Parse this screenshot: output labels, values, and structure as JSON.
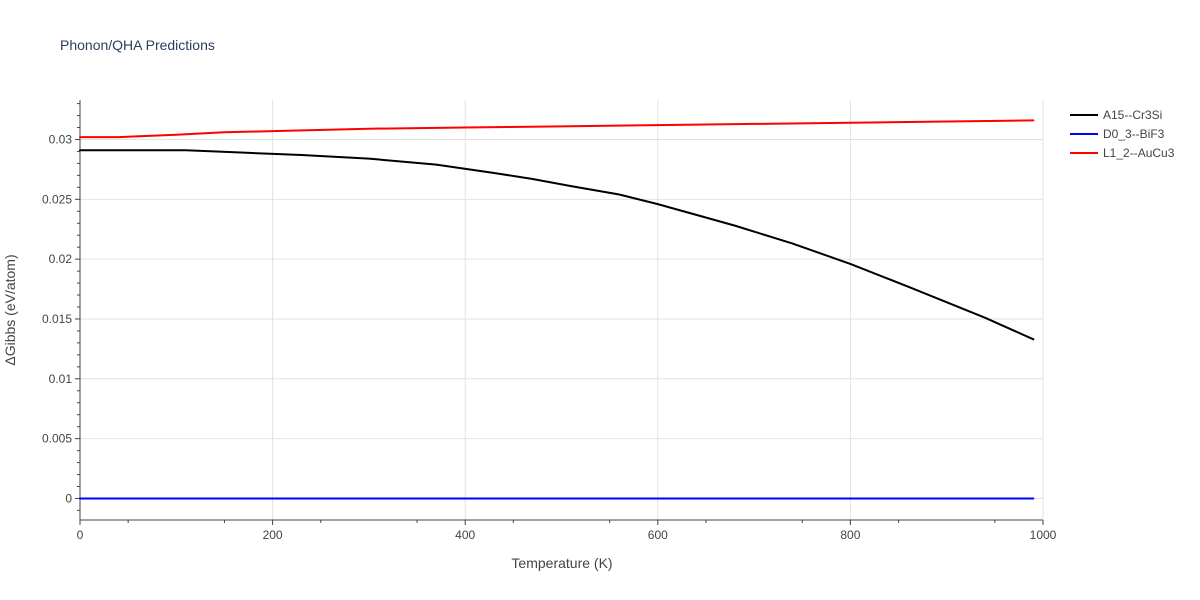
{
  "chart_data": {
    "type": "line",
    "title": "Phonon/QHA Predictions",
    "xlabel": "Temperature (K)",
    "ylabel": "ΔGibbs (eV/atom)",
    "xlim": [
      0,
      1000
    ],
    "ylim": [
      -0.0018,
      0.0333
    ],
    "grid": true,
    "legend_position": "top-right, outside plot",
    "x_ticks": [
      0,
      200,
      400,
      600,
      800,
      1000
    ],
    "x_tick_labels": [
      "0",
      "200",
      "400",
      "600",
      "800",
      "1000"
    ],
    "y_ticks": [
      0,
      0.005,
      0.01,
      0.015,
      0.02,
      0.025,
      0.03
    ],
    "y_tick_labels": [
      "0",
      "0.005",
      "0.01",
      "0.015",
      "0.02",
      "0.025",
      "0.03"
    ],
    "series": [
      {
        "name": "A15--Cr3Si",
        "color": "#000000",
        "x": [
          0,
          50,
          110,
          170,
          230,
          300,
          370,
          430,
          470,
          510,
          560,
          600,
          640,
          680,
          740,
          800,
          860,
          940,
          990
        ],
        "y": [
          0.0291,
          0.0291,
          0.0291,
          0.0289,
          0.0287,
          0.0284,
          0.0279,
          0.0272,
          0.0267,
          0.0261,
          0.0254,
          0.0246,
          0.0237,
          0.0228,
          0.0213,
          0.0196,
          0.0177,
          0.0151,
          0.0133
        ]
      },
      {
        "name": "D0_3--BiF3",
        "color": "#0000ff",
        "x": [
          0,
          990
        ],
        "y": [
          0,
          0
        ]
      },
      {
        "name": "L1_2--AuCu3",
        "color": "#ff0000",
        "x": [
          0,
          40,
          100,
          150,
          200,
          300,
          400,
          500,
          600,
          700,
          800,
          900,
          990
        ],
        "y": [
          0.0302,
          0.0302,
          0.0304,
          0.0306,
          0.0307,
          0.0309,
          0.031,
          0.0311,
          0.0312,
          0.0313,
          0.0314,
          0.0315,
          0.0316
        ]
      }
    ]
  }
}
